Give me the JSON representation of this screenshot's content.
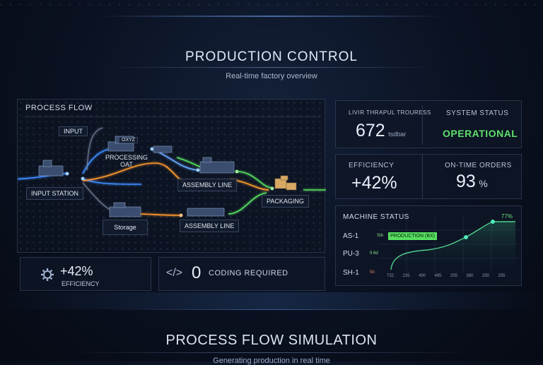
{
  "header": {
    "title": "PRODUCTION CONTROL",
    "subtitle": "Real-time factory overview"
  },
  "process_flow": {
    "label": "PROCESS FLOW",
    "nodes": {
      "input": "INPUT",
      "input_station": "INPUT STATION",
      "processing_line1": "PROCESSING",
      "processing_line2": "OAT",
      "processing_sign": "OXYZ",
      "assembly_top": "ASSEMBLY LINE",
      "assembly_bottom": "ASSEMBLY LINE",
      "storage": "Storage",
      "packaging": "PACKAGING"
    },
    "colors": {
      "blue": "#3c8cff",
      "orange": "#ff9a2e",
      "green": "#56e05f"
    }
  },
  "stats": {
    "throughput": {
      "label": "LIVIR THRAPUL TROURESS",
      "value": "672",
      "unit": "tsdbar"
    },
    "system_status": {
      "label": "SYSTEM STATUS",
      "value": "OPERATIONAL"
    },
    "efficiency": {
      "label": "EFFICIENCY",
      "value": "+42%"
    },
    "on_time": {
      "label": "ON-TIME ORDERS",
      "value": "93",
      "unit": "%"
    }
  },
  "machine_status": {
    "label": "MACHINE STATUS",
    "peak_label": "77%",
    "rows": [
      {
        "name": "AS-1",
        "tag": "Stb",
        "badge": "PRODUCTION (BX)",
        "color": "#56e05f"
      },
      {
        "name": "PU-3",
        "tag": "9 8d",
        "badge": "",
        "color": "#56e05f"
      },
      {
        "name": "SH-1",
        "tag": "5b",
        "badge": "",
        "color": "#e04a3a"
      }
    ],
    "x_ticks": [
      "732",
      "235",
      "490",
      "485",
      "255",
      "380",
      "250",
      "255"
    ]
  },
  "bottom_cards": {
    "efficiency_value": "+42%",
    "efficiency_label": "EFFICIENCY",
    "coding_symbol": "</>",
    "coding_value": "0",
    "coding_label": "CODING REQUIRED"
  },
  "footer": {
    "title": "PROCESS FLOW SIMULATION",
    "subtitle": "Generating production in real time"
  }
}
